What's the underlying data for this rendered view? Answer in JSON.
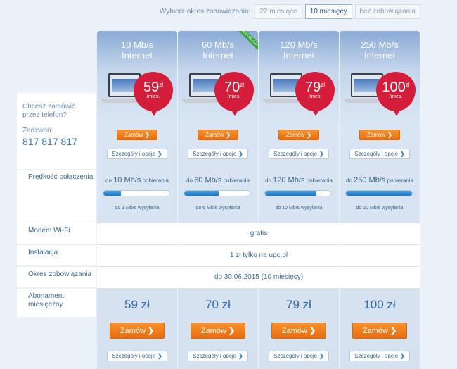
{
  "commitment": {
    "label": "Wybierz okres zobowiązania:",
    "options": [
      "22 miesiące",
      "10 miesięcy",
      "bez zobowiązania"
    ],
    "selected": "10 miesięcy"
  },
  "contact": {
    "question": "Chcesz zamówić przez telefon?",
    "call_label": "Zadzwoń:",
    "phone": "817 817 817"
  },
  "rows": {
    "speed": "Prędkość połączenia",
    "modem": "Modem Wi-Fi",
    "install": "Instalacja",
    "period": "Okres zobowiązania",
    "monthly": "Abonament miesięczny"
  },
  "shared": {
    "modem_value": "gratis",
    "install_value": "1 zł tylko na upc.pl",
    "period_value": "do 30.06.2015 (10 miesięcy)",
    "order_label": "Zamów",
    "details_label": "Szczegóły i opcje",
    "chevron": "❯",
    "currency": "zł",
    "per_month": "/mies.",
    "bestseller": "BESTSELLER",
    "up_prefix": "do",
    "up_suffix": "pobierania",
    "down_suffix": "wysyłania"
  },
  "plans": [
    {
      "speed": "10 Mb/s",
      "name": "Internet",
      "price": "59",
      "price_full": "59 zł",
      "up": "10 Mb/s",
      "down": "do 1 Mb/s",
      "fill": 0.27
    },
    {
      "speed": "60 Mb/s",
      "name": "Internet",
      "price": "70",
      "price_full": "70 zł",
      "up": "60 Mb/s",
      "down": "do 6 Mb/s",
      "fill": 0.52
    },
    {
      "speed": "120 Mb/s",
      "name": "Internet",
      "price": "79",
      "price_full": "79 zł",
      "up": "120 Mb/s",
      "down": "do 10 Mb/s",
      "fill": 0.78
    },
    {
      "speed": "250 Mb/s",
      "name": "Internet",
      "price": "100",
      "price_full": "100 zł",
      "up": "250 Mb/s",
      "down": "do 20 Mb/s",
      "fill": 1.0
    }
  ],
  "colors": {
    "accent_orange": "#f07d1b",
    "price_red": "#d41d3a",
    "bar_blue": "#2b86d1",
    "bestseller_green": "#3aa33a"
  }
}
